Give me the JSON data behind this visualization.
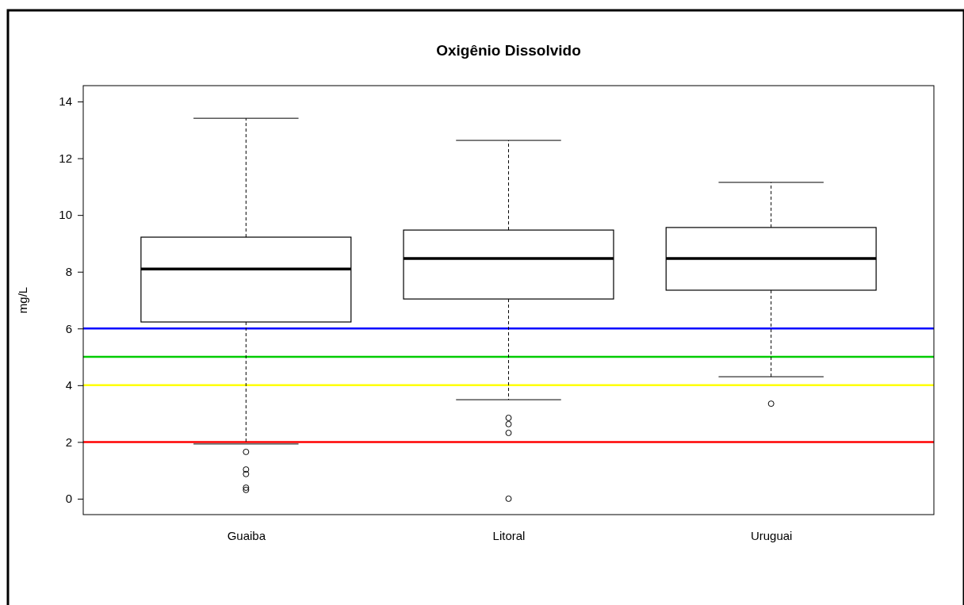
{
  "chart_data": {
    "type": "box",
    "title": "Oxigênio Dissolvido",
    "ylabel": "mg/L",
    "categories": [
      "Guaiba",
      "Litoral",
      "Uruguai"
    ],
    "boxes": [
      {
        "low": 1.93,
        "q1": 6.23,
        "median": 8.1,
        "q3": 9.22,
        "high": 13.41,
        "outliers": [
          1.65,
          1.03,
          0.87,
          0.39,
          0.31
        ]
      },
      {
        "low": 3.49,
        "q1": 7.04,
        "median": 8.47,
        "q3": 9.47,
        "high": 12.63,
        "outliers": [
          2.85,
          2.63,
          2.32,
          0
        ]
      },
      {
        "low": 4.3,
        "q1": 7.35,
        "median": 8.47,
        "q3": 9.56,
        "high": 11.15,
        "outliers": [
          3.35
        ]
      }
    ],
    "ylim": [
      -0.56,
      14.56
    ],
    "yticks": [
      0,
      2,
      4,
      6,
      8,
      10,
      12,
      14
    ],
    "grid": false,
    "ref_lines": [
      {
        "axis": "y",
        "value": 6,
        "color": "#0000ff"
      },
      {
        "axis": "y",
        "value": 5,
        "color": "#00cc00"
      },
      {
        "axis": "y",
        "value": 4,
        "color": "#ffff00"
      },
      {
        "axis": "y",
        "value": 2,
        "color": "#ff0000"
      }
    ]
  }
}
